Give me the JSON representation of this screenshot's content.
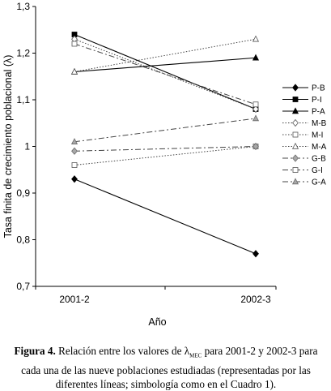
{
  "chart_data": {
    "type": "line",
    "categories": [
      "2001-2",
      "2002-3"
    ],
    "xlabel": "Año",
    "ylabel": "Tasa finita de crecimiento poblacional (λ)",
    "ylim": [
      0.7,
      1.3
    ],
    "yticks": [
      "0,7",
      "0,8",
      "0,9",
      "1",
      "1,1",
      "1,2",
      "1,3"
    ],
    "ytick_values": [
      0.7,
      0.8,
      0.9,
      1.0,
      1.1,
      1.2,
      1.3
    ],
    "grid": false,
    "legend_position": "right",
    "series": [
      {
        "name": "P-B",
        "values": [
          0.93,
          0.77
        ],
        "dash": "solid",
        "marker": "diamond-filled"
      },
      {
        "name": "P-I",
        "values": [
          1.24,
          1.08
        ],
        "dash": "solid",
        "marker": "square-filled"
      },
      {
        "name": "P-A",
        "values": [
          1.16,
          1.19
        ],
        "dash": "solid",
        "marker": "triangle-filled"
      },
      {
        "name": "M-B",
        "values": [
          1.23,
          1.08
        ],
        "dash": "dotted",
        "marker": "diamond-open"
      },
      {
        "name": "M-I",
        "values": [
          0.96,
          1.0
        ],
        "dash": "dotted",
        "marker": "square-open"
      },
      {
        "name": "M-A",
        "values": [
          1.16,
          1.23
        ],
        "dash": "dotted",
        "marker": "triangle-open"
      },
      {
        "name": "G-B",
        "values": [
          0.99,
          1.0
        ],
        "dash": "dashdot",
        "marker": "diamond-grey"
      },
      {
        "name": "G-I",
        "values": [
          1.22,
          1.09
        ],
        "dash": "dashdot",
        "marker": "square-open"
      },
      {
        "name": "G-A",
        "values": [
          1.01,
          1.06
        ],
        "dash": "dashdot",
        "marker": "triangle-grey"
      }
    ]
  },
  "caption": {
    "label": "Figura 4.",
    "text_before": " Relación entre los valores de λ",
    "subscript": "MEC",
    "text_after": " para 2001-2 y 2002-3 para cada una de las nueve poblaciones estudiadas (representadas por las diferentes líneas; simbología como en el Cuadro 1)."
  }
}
